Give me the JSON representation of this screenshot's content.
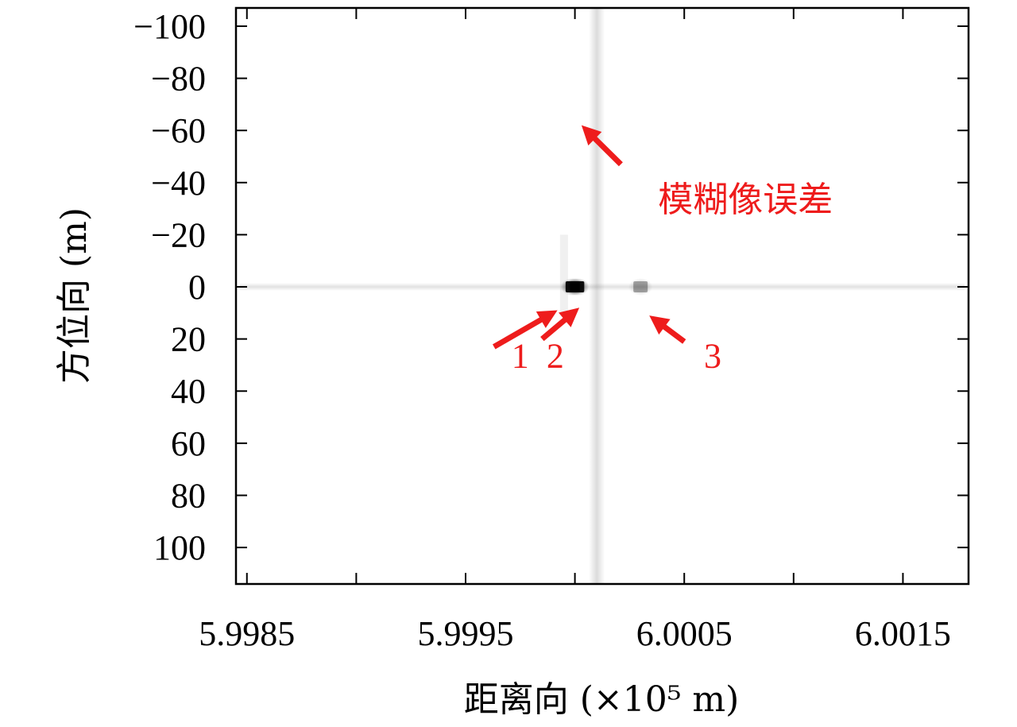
{
  "chart_data": {
    "type": "heatmap",
    "xlabel": "距离向 (×10⁵ m)",
    "ylabel": "方位向 (m)",
    "xlim": [
      5.99845,
      6.0018
    ],
    "ylim": [
      -107,
      114
    ],
    "x_ticks": [
      {
        "value": 5.9985,
        "label": "5.9985"
      },
      {
        "value": 5.9995,
        "label": "5.9995"
      },
      {
        "value": 6.0005,
        "label": "6.0005"
      },
      {
        "value": 6.0015,
        "label": "6.0015"
      }
    ],
    "x_minor_ticks": [
      5.999,
      6.0,
      6.001
    ],
    "y_ticks": [
      {
        "value": -100,
        "label": "−100"
      },
      {
        "value": -80,
        "label": "−80"
      },
      {
        "value": -60,
        "label": "−60"
      },
      {
        "value": -40,
        "label": "−40"
      },
      {
        "value": -20,
        "label": "−20"
      },
      {
        "value": 0,
        "label": "0"
      },
      {
        "value": 20,
        "label": "20"
      },
      {
        "value": 40,
        "label": "40"
      },
      {
        "value": 60,
        "label": "60"
      },
      {
        "value": 80,
        "label": "80"
      },
      {
        "value": 100,
        "label": "100"
      }
    ],
    "colormap": "gray_r",
    "points": [
      {
        "id": "1",
        "x": 5.99999,
        "y": 0,
        "intensity": 1.0
      },
      {
        "id": "2",
        "x": 6.00001,
        "y": 0,
        "intensity": 1.0
      },
      {
        "id": "3",
        "x": 6.0003,
        "y": 0,
        "intensity": 0.35
      }
    ],
    "streaks": {
      "range_line_y": 0,
      "azimuth_line_x": 6.0001
    },
    "annotations": [
      {
        "text": "模糊像误差",
        "x": 6.00078,
        "y": -29,
        "arrow_from": [
          6.00021,
          -47
        ],
        "arrow_to": [
          6.00003,
          -62
        ],
        "color": "#ee1c1c"
      },
      {
        "text": "1",
        "x": 5.99975,
        "y": 31,
        "arrow_from": [
          5.99963,
          23
        ],
        "arrow_to": [
          5.99992,
          9
        ],
        "color": "#ee1c1c"
      },
      {
        "text": "2",
        "x": 5.99991,
        "y": 31,
        "arrow_from": [
          5.99985,
          20
        ],
        "arrow_to": [
          6.00002,
          8
        ],
        "color": "#ee1c1c"
      },
      {
        "text": "3",
        "x": 6.00063,
        "y": 31,
        "arrow_from": [
          6.0005,
          21
        ],
        "arrow_to": [
          6.00034,
          11
        ],
        "color": "#ee1c1c"
      }
    ]
  }
}
